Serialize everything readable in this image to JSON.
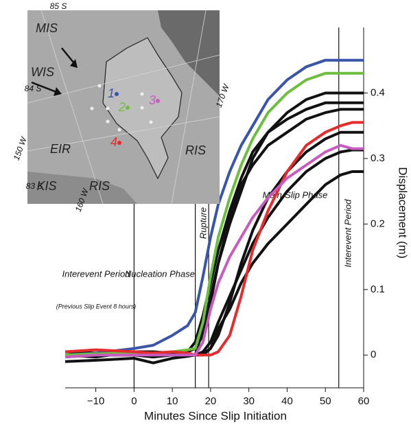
{
  "chart_data": {
    "type": "line",
    "x_label": "Minutes Since Slip Initiation",
    "y_label": "Displacement (m)",
    "x": [
      -18,
      -10,
      0,
      5,
      10,
      14,
      16,
      18,
      20,
      22,
      25,
      28,
      31,
      35,
      40,
      45,
      50,
      54,
      57,
      60
    ],
    "xlim": [
      -18,
      60
    ],
    "xticks": [
      {
        "value": -10,
        "label": "−10"
      },
      0,
      10,
      20,
      30,
      40,
      50,
      60
    ],
    "ylim": [
      -0.05,
      0.5
    ],
    "yticks": [
      0,
      0.1,
      0.2,
      0.3,
      0.4
    ],
    "phase_lines": [
      0,
      16,
      19.5,
      53.5
    ],
    "annotations": [
      "Interevent Period",
      "(Previous Slip Event 8 hours)",
      "Nucleation Phase",
      "Rupture",
      "Main-Slip Phase",
      "Interevent Period"
    ],
    "series": [
      {
        "color": "#111111",
        "values": [
          -0.01,
          -0.008,
          -0.005,
          -0.012,
          -0.005,
          -0.002,
          0.0,
          0.04,
          0.09,
          0.14,
          0.2,
          0.25,
          0.3,
          0.34,
          0.37,
          0.39,
          0.4,
          0.4,
          0.4,
          0.4
        ]
      },
      {
        "color": "#111111",
        "values": [
          0.0,
          0.002,
          0.0,
          -0.003,
          0.0,
          0.005,
          0.02,
          0.06,
          0.11,
          0.16,
          0.22,
          0.27,
          0.31,
          0.34,
          0.36,
          0.375,
          0.385,
          0.385,
          0.385,
          0.385
        ]
      },
      {
        "color": "#111111",
        "values": [
          0.0,
          -0.003,
          0.005,
          0.005,
          0.003,
          0.005,
          0.01,
          0.03,
          0.08,
          0.14,
          0.21,
          0.26,
          0.29,
          0.32,
          0.34,
          0.36,
          0.37,
          0.375,
          0.375,
          0.375
        ]
      },
      {
        "color": "#111111",
        "values": [
          0.0,
          0.0,
          0.0,
          0.0,
          0.0,
          0.0,
          0.0,
          0.0,
          0.01,
          0.03,
          0.08,
          0.14,
          0.19,
          0.24,
          0.28,
          0.31,
          0.33,
          0.34,
          0.34,
          0.34
        ]
      },
      {
        "color": "#111111",
        "values": [
          -0.003,
          0.0,
          0.0,
          0.0,
          0.0,
          0.0,
          0.0,
          0.005,
          0.02,
          0.05,
          0.09,
          0.13,
          0.17,
          0.21,
          0.25,
          0.28,
          0.3,
          0.31,
          0.313,
          0.313
        ]
      },
      {
        "color": "#111111",
        "values": [
          0.005,
          0.003,
          0.0,
          0.0,
          0.0,
          0.0,
          0.0,
          0.002,
          0.01,
          0.04,
          0.07,
          0.11,
          0.14,
          0.17,
          0.2,
          0.23,
          0.26,
          0.275,
          0.28,
          0.28
        ]
      },
      {
        "color": "#3a55a8",
        "values": [
          0.0,
          0.003,
          0.01,
          0.015,
          0.03,
          0.045,
          0.065,
          0.12,
          0.18,
          0.23,
          0.28,
          0.32,
          0.35,
          0.39,
          0.42,
          0.44,
          0.45,
          0.45,
          0.45,
          0.45
        ]
      },
      {
        "color": "#6cbf3d",
        "values": [
          0.0,
          0.002,
          0.003,
          0.003,
          0.005,
          0.008,
          0.01,
          0.05,
          0.12,
          0.18,
          0.24,
          0.29,
          0.33,
          0.37,
          0.4,
          0.42,
          0.43,
          0.43,
          0.43,
          0.43
        ]
      },
      {
        "color": "#e52b2b",
        "values": [
          0.005,
          0.008,
          0.005,
          0.003,
          0.005,
          0.003,
          0.0,
          0.0,
          0.0,
          0.005,
          0.03,
          0.09,
          0.16,
          0.22,
          0.28,
          0.32,
          0.34,
          0.35,
          0.355,
          0.355
        ]
      },
      {
        "color": "#c75bbf",
        "values": [
          -0.003,
          0.0,
          0.0,
          0.0,
          0.0,
          0.0,
          0.0,
          0.02,
          0.07,
          0.11,
          0.15,
          0.18,
          0.21,
          0.24,
          0.27,
          0.29,
          0.31,
          0.32,
          0.315,
          0.315
        ]
      }
    ]
  },
  "inset_map": {
    "labels": [
      "85 S",
      "MIS",
      "WIS",
      "84 S",
      "170 W",
      "150 W",
      "EIR",
      "RIS",
      "83 S",
      "KIS",
      "RIS",
      "160 W"
    ],
    "stations": [
      {
        "label": "1",
        "color": "#3a55a8"
      },
      {
        "label": "2",
        "color": "#6cbf3d"
      },
      {
        "label": "3",
        "color": "#c75bbf"
      },
      {
        "label": "4",
        "color": "#e52b2b"
      }
    ]
  }
}
